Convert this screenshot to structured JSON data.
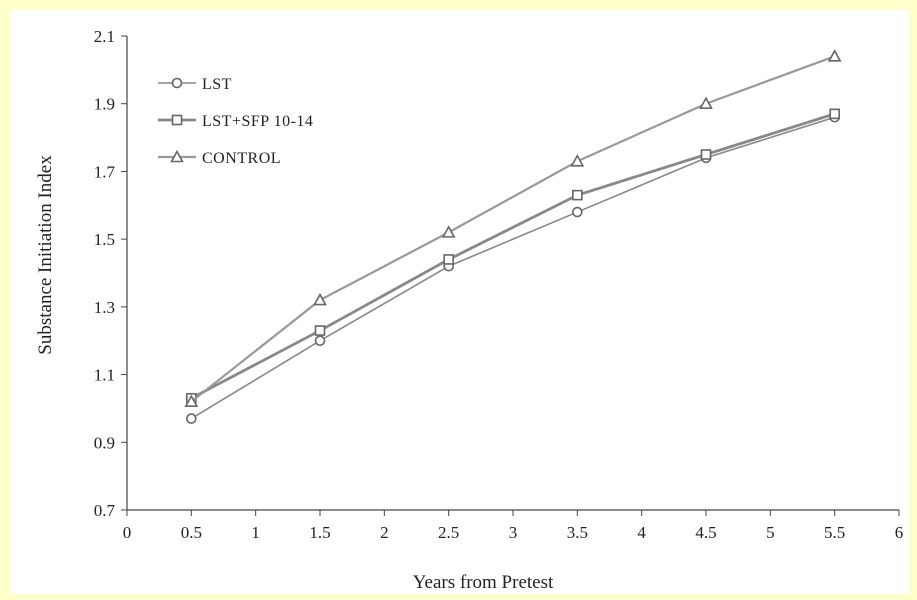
{
  "background_color": "#ffffcc",
  "chart_data": {
    "type": "line",
    "xlabel": "Years from Pretest",
    "ylabel": "Substance Initiation Index",
    "xlim": [
      0,
      6
    ],
    "ylim": [
      0.7,
      2.1
    ],
    "x_ticks": [
      "0",
      "0.5",
      "1",
      "1.5",
      "2",
      "2.5",
      "3",
      "3.5",
      "4",
      "4.5",
      "5",
      "5.5",
      "6"
    ],
    "y_ticks": [
      "0.7",
      "0.9",
      "1.1",
      "1.3",
      "1.5",
      "1.7",
      "1.9",
      "2.1"
    ],
    "x": [
      0.5,
      1.5,
      2.5,
      3.5,
      4.5,
      5.5
    ],
    "legend_position": "top-left",
    "series": [
      {
        "name": "LST",
        "marker": "circle",
        "color": "#888888",
        "values": [
          0.97,
          1.2,
          1.42,
          1.58,
          1.74,
          1.86
        ]
      },
      {
        "name": "LST+SFP 10-14",
        "marker": "square",
        "color": "#888888",
        "values": [
          1.03,
          1.23,
          1.44,
          1.63,
          1.75,
          1.87
        ]
      },
      {
        "name": "CONTROL",
        "marker": "triangle",
        "color": "#999999",
        "values": [
          1.02,
          1.32,
          1.52,
          1.73,
          1.9,
          2.04
        ]
      }
    ]
  }
}
